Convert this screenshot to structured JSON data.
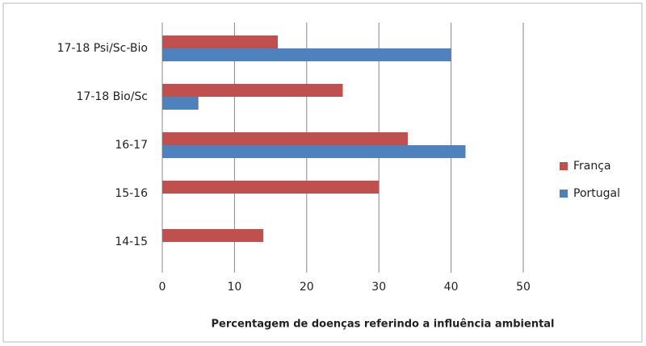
{
  "chart_data": {
    "type": "hbar",
    "x_label": "Percentagem de doenças referindo a influência ambiental",
    "categories": [
      "17-18 Psi/Sc-Bio",
      "17-18 Bio/Sc",
      "16-17",
      "15-16",
      "14-15"
    ],
    "series": [
      {
        "name": "França",
        "color": "#c0504d",
        "values": [
          16,
          25,
          34,
          30,
          14
        ]
      },
      {
        "name": "Portugal",
        "color": "#4f81bd",
        "values": [
          40,
          5,
          42,
          0,
          0
        ]
      }
    ],
    "xlim": [
      0,
      50
    ],
    "xticks": [
      0,
      10,
      20,
      30,
      40,
      50
    ],
    "grid": true,
    "legend": "right"
  }
}
